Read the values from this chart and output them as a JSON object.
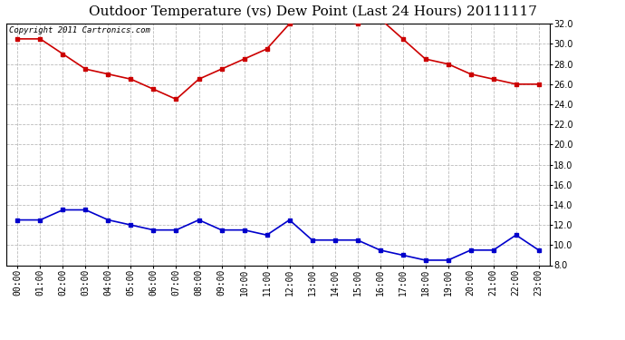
{
  "title": "Outdoor Temperature (vs) Dew Point (Last 24 Hours) 20111117",
  "copyright_text": "Copyright 2011 Cartronics.com",
  "x_labels": [
    "00:00",
    "01:00",
    "02:00",
    "03:00",
    "04:00",
    "05:00",
    "06:00",
    "07:00",
    "08:00",
    "09:00",
    "10:00",
    "11:00",
    "12:00",
    "13:00",
    "14:00",
    "15:00",
    "16:00",
    "17:00",
    "18:00",
    "19:00",
    "20:00",
    "21:00",
    "22:00",
    "23:00"
  ],
  "temp_data": [
    30.5,
    30.5,
    29.0,
    27.5,
    27.0,
    26.5,
    25.5,
    24.5,
    26.5,
    27.5,
    28.5,
    29.5,
    32.0,
    32.5,
    32.5,
    32.0,
    32.5,
    30.5,
    28.5,
    28.0,
    27.0,
    26.5,
    26.0,
    26.0
  ],
  "dew_data": [
    12.5,
    12.5,
    13.5,
    13.5,
    12.5,
    12.0,
    11.5,
    11.5,
    12.5,
    11.5,
    11.5,
    11.0,
    12.5,
    10.5,
    10.5,
    10.5,
    9.5,
    9.0,
    8.5,
    8.5,
    9.5,
    9.5,
    11.0,
    9.5
  ],
  "temp_color": "#cc0000",
  "dew_color": "#0000cc",
  "bg_color": "#ffffff",
  "plot_bg_color": "#ffffff",
  "grid_color": "#bbbbbb",
  "ylim_min": 8.0,
  "ylim_max": 32.0,
  "ytick_step": 2.0,
  "title_fontsize": 11,
  "copyright_fontsize": 6.5,
  "axis_label_fontsize": 7,
  "line_width": 1.2,
  "marker": "s",
  "marker_size": 2.5
}
